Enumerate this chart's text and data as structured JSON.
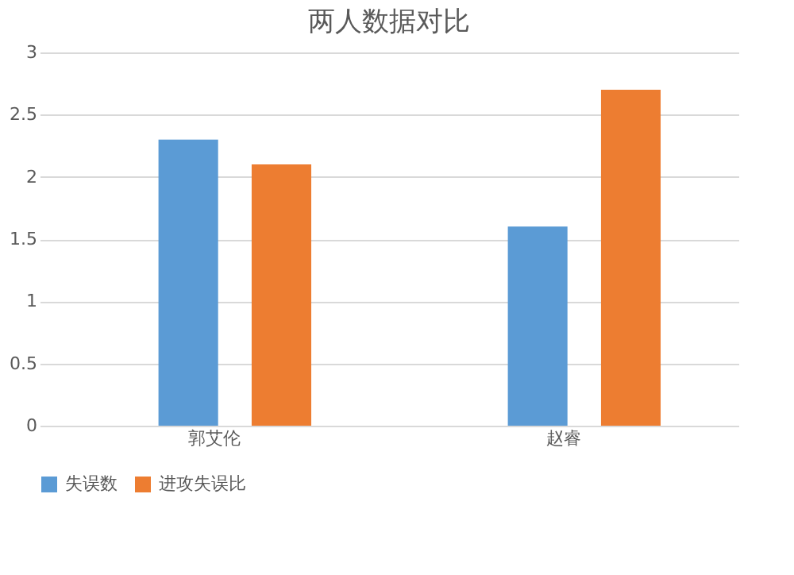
{
  "chart_data": {
    "type": "bar",
    "title": "两人数据对比",
    "categories": [
      "郭艾伦",
      "赵睿"
    ],
    "series": [
      {
        "name": "失误数",
        "color": "#5b9bd5",
        "values": [
          2.3,
          1.6
        ]
      },
      {
        "name": "进攻失误比",
        "color": "#ed7d31",
        "values": [
          2.1,
          2.7
        ]
      }
    ],
    "ylim": [
      0,
      3
    ],
    "yticks": [
      0,
      0.5,
      1,
      1.5,
      2,
      2.5,
      3
    ],
    "grid": "y",
    "legend": "bottom"
  }
}
